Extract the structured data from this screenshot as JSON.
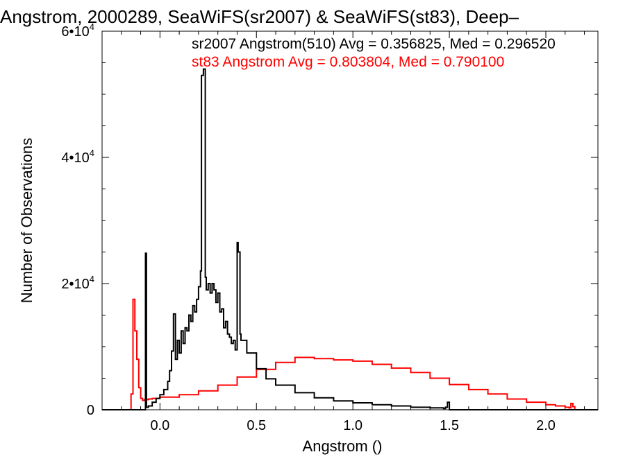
{
  "chart_data": {
    "type": "line",
    "title": "Angstrom, 2000289, SeaWiFS(sr2007) & SeaWiFS(st83), Deep–",
    "xlabel": "Angstrom ()",
    "ylabel": "Number of Observations",
    "xlim": [
      -0.3,
      2.27
    ],
    "ylim": [
      0,
      60000
    ],
    "x_ticks": [
      {
        "value": 0.0,
        "label": "0.0"
      },
      {
        "value": 0.5,
        "label": "0.5"
      },
      {
        "value": 1.0,
        "label": "1.0"
      },
      {
        "value": 1.5,
        "label": "1.5"
      },
      {
        "value": 2.0,
        "label": "2.0"
      }
    ],
    "y_ticks": [
      {
        "value": 0,
        "base": "0",
        "exp": ""
      },
      {
        "value": 20000,
        "base": "2•10",
        "exp": "4"
      },
      {
        "value": 40000,
        "base": "4•10",
        "exp": "4"
      },
      {
        "value": 60000,
        "base": "6•10",
        "exp": "4"
      }
    ],
    "grid": false,
    "series": [
      {
        "name": "sr2007 Angstrom(510)",
        "legend_text": "sr2007 Angstrom(510) Avg = 0.356825, Med = 0.296520",
        "color": "#000000",
        "step": true,
        "x": [
          -0.3,
          -0.08,
          -0.075,
          -0.07,
          -0.06,
          -0.04,
          -0.02,
          0.0,
          0.02,
          0.04,
          0.05,
          0.06,
          0.07,
          0.08,
          0.09,
          0.1,
          0.11,
          0.12,
          0.13,
          0.14,
          0.15,
          0.16,
          0.17,
          0.18,
          0.19,
          0.2,
          0.21,
          0.215,
          0.225,
          0.235,
          0.24,
          0.25,
          0.26,
          0.27,
          0.28,
          0.29,
          0.3,
          0.31,
          0.32,
          0.33,
          0.34,
          0.35,
          0.36,
          0.37,
          0.38,
          0.39,
          0.4,
          0.405,
          0.415,
          0.42,
          0.45,
          0.5,
          0.55,
          0.6,
          0.7,
          0.8,
          0.9,
          1.0,
          1.1,
          1.2,
          1.3,
          1.4,
          1.47,
          1.48,
          1.49,
          1.5,
          2.27
        ],
        "y": [
          0,
          0,
          24800,
          400,
          600,
          1200,
          1800,
          2400,
          3200,
          4500,
          6200,
          9300,
          15200,
          8000,
          11000,
          9000,
          12500,
          10500,
          13000,
          12500,
          15000,
          14000,
          16500,
          15500,
          17500,
          19500,
          22000,
          53000,
          54000,
          21000,
          19000,
          20000,
          18500,
          20000,
          19000,
          17000,
          18500,
          15500,
          16000,
          13000,
          14000,
          12000,
          11500,
          10500,
          11000,
          9500,
          26500,
          25000,
          12000,
          11000,
          9000,
          6500,
          4900,
          3900,
          2700,
          1900,
          1400,
          1100,
          800,
          600,
          400,
          300,
          200,
          400,
          1200,
          0,
          0
        ]
      },
      {
        "name": "st83 Angstrom",
        "legend_text": "st83 Angstrom Avg = 0.803804, Med = 0.790100",
        "color": "#ff0000",
        "step": true,
        "x": [
          -0.3,
          -0.16,
          -0.15,
          -0.14,
          -0.13,
          -0.12,
          -0.11,
          -0.1,
          -0.09,
          -0.08,
          -0.06,
          -0.04,
          0.0,
          0.1,
          0.2,
          0.3,
          0.4,
          0.5,
          0.6,
          0.7,
          0.8,
          0.9,
          1.0,
          1.1,
          1.2,
          1.3,
          1.4,
          1.5,
          1.6,
          1.7,
          1.8,
          1.9,
          2.0,
          2.05,
          2.1,
          2.12,
          2.13,
          2.14,
          2.15,
          2.27
        ],
        "y": [
          0,
          0,
          2500,
          17500,
          12500,
          8000,
          3500,
          1800,
          1500,
          1600,
          1700,
          1800,
          2000,
          2400,
          3000,
          3900,
          5200,
          6400,
          7500,
          8300,
          8100,
          7900,
          7700,
          7200,
          6600,
          5900,
          5000,
          4000,
          3200,
          2500,
          1700,
          1200,
          800,
          600,
          400,
          300,
          1000,
          500,
          0,
          0
        ]
      }
    ]
  }
}
